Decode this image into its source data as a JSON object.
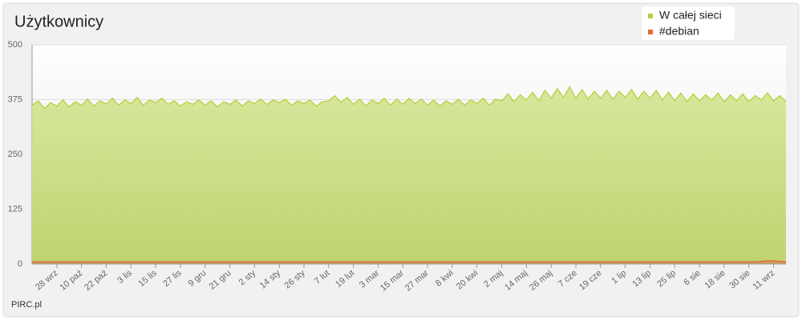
{
  "chart_data": {
    "type": "area",
    "title": "Użytkownicy",
    "footer": "PIRC.pl",
    "categories": [
      null,
      null,
      null,
      null,
      "28 wrz",
      null,
      null,
      null,
      "10 paź",
      null,
      null,
      null,
      "22 paź",
      null,
      null,
      null,
      "3 lis",
      null,
      null,
      null,
      "15 lis",
      null,
      null,
      null,
      "27 lis",
      null,
      null,
      null,
      "9 gru",
      null,
      null,
      null,
      "21 gru",
      null,
      null,
      null,
      "2 sty",
      null,
      null,
      null,
      "14 sty",
      null,
      null,
      null,
      "26 sty",
      null,
      null,
      null,
      "7 lut",
      null,
      null,
      null,
      "19 lut",
      null,
      null,
      null,
      "3 mar",
      null,
      null,
      null,
      "15 mar",
      null,
      null,
      null,
      "27 mar",
      null,
      null,
      null,
      "8 kwi",
      null,
      null,
      null,
      "20 kwi",
      null,
      null,
      null,
      "2 maj",
      null,
      null,
      null,
      "14 maj",
      null,
      null,
      null,
      "26 maj",
      null,
      null,
      null,
      "7 cze",
      null,
      null,
      null,
      "19 cze",
      null,
      null,
      null,
      "1 lip",
      null,
      null,
      null,
      "13 lip",
      null,
      null,
      null,
      "25 lip",
      null,
      null,
      null,
      "6 sie",
      null,
      null,
      null,
      "18 sie",
      null,
      null,
      null,
      "30 sie",
      null,
      null,
      null,
      "11 wrz",
      null,
      null
    ],
    "series": [
      {
        "name": "W całej sieci",
        "color": "#b3d23c",
        "fill": "#cfe08a",
        "values": [
          362,
          372,
          355,
          368,
          360,
          374,
          358,
          370,
          362,
          376,
          360,
          372,
          365,
          378,
          362,
          374,
          366,
          380,
          362,
          374,
          368,
          378,
          364,
          372,
          360,
          370,
          364,
          374,
          362,
          372,
          358,
          370,
          364,
          374,
          360,
          372,
          366,
          376,
          364,
          374,
          368,
          376,
          362,
          372,
          366,
          374,
          360,
          370,
          372,
          384,
          368,
          380,
          364,
          376,
          360,
          374,
          366,
          378,
          362,
          376,
          364,
          378,
          366,
          376,
          362,
          374,
          360,
          372,
          364,
          376,
          362,
          374,
          366,
          378,
          362,
          376,
          372,
          388,
          370,
          386,
          374,
          392,
          372,
          396,
          378,
          400,
          380,
          404,
          378,
          398,
          376,
          394,
          378,
          396,
          376,
          394,
          380,
          398,
          376,
          394,
          378,
          396,
          374,
          392,
          372,
          390,
          370,
          388,
          372,
          386,
          374,
          390,
          370,
          386,
          372,
          388,
          370,
          384,
          374,
          390,
          372,
          384,
          370
        ]
      },
      {
        "name": "#debian",
        "color": "#e0683a",
        "values": [
          5,
          5,
          5,
          5,
          5,
          5,
          5,
          5,
          5,
          5,
          5,
          5,
          5,
          5,
          5,
          5,
          5,
          5,
          5,
          5,
          5,
          5,
          5,
          5,
          5,
          5,
          5,
          5,
          5,
          5,
          5,
          5,
          5,
          5,
          5,
          5,
          5,
          5,
          5,
          5,
          5,
          5,
          5,
          5,
          5,
          5,
          5,
          5,
          5,
          5,
          5,
          5,
          5,
          5,
          5,
          5,
          5,
          5,
          5,
          5,
          5,
          5,
          5,
          5,
          5,
          5,
          5,
          5,
          5,
          5,
          5,
          5,
          5,
          5,
          5,
          5,
          5,
          5,
          5,
          5,
          5,
          5,
          5,
          5,
          5,
          5,
          5,
          5,
          5,
          5,
          5,
          5,
          5,
          5,
          5,
          5,
          5,
          5,
          5,
          5,
          5,
          5,
          5,
          5,
          5,
          5,
          5,
          5,
          5,
          5,
          5,
          5,
          5,
          5,
          5,
          5,
          5,
          5,
          6,
          7,
          7,
          6,
          5
        ]
      }
    ],
    "ylim": [
      0,
      500
    ],
    "yticks": [
      0,
      125,
      250,
      375,
      500
    ],
    "grid": true
  }
}
